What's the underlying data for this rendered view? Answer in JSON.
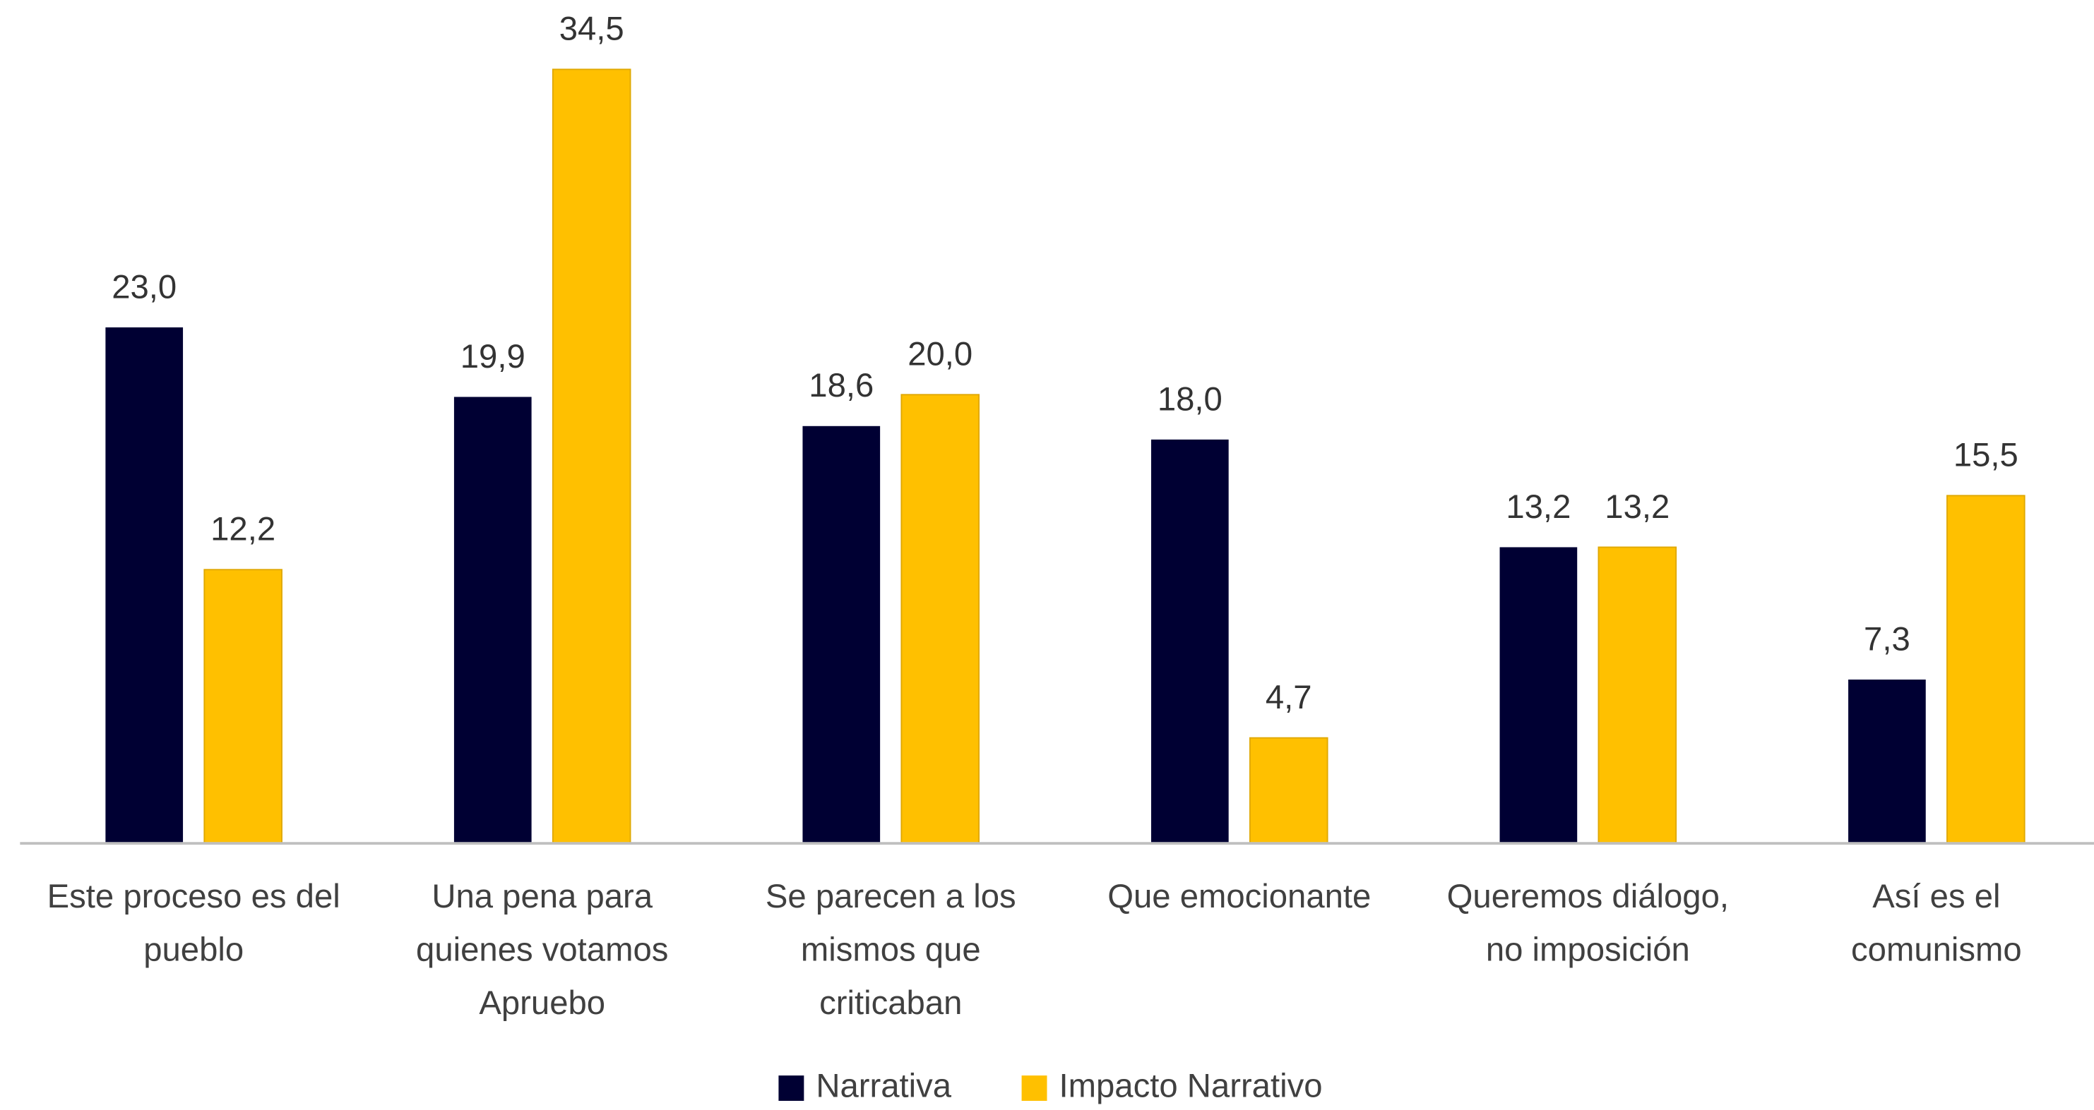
{
  "chart_data": {
    "type": "bar",
    "categories": [
      [
        "Este proceso es del",
        "pueblo"
      ],
      [
        "Una pena para",
        "quienes votamos",
        "Apruebo"
      ],
      [
        "Se parecen a los",
        "mismos que",
        "criticaban"
      ],
      [
        "Que emocionante"
      ],
      [
        "Queremos diálogo,",
        "no imposición"
      ],
      [
        "Así es el",
        "comunismo"
      ]
    ],
    "series": [
      {
        "name": "Narrativa",
        "color": "#000033",
        "values": [
          23.0,
          19.9,
          18.6,
          18.0,
          13.2,
          7.3
        ],
        "value_labels": [
          "23,0",
          "19,9",
          "18,6",
          "18,0",
          "13,2",
          "7,3"
        ]
      },
      {
        "name": "Impacto Narrativo",
        "color": "#FFC000",
        "values": [
          12.2,
          34.5,
          20.0,
          4.7,
          13.2,
          15.5
        ],
        "value_labels": [
          "12,2",
          "34,5",
          "20,0",
          "4,7",
          "13,2",
          "15,5"
        ]
      }
    ],
    "legend": "bottom"
  }
}
